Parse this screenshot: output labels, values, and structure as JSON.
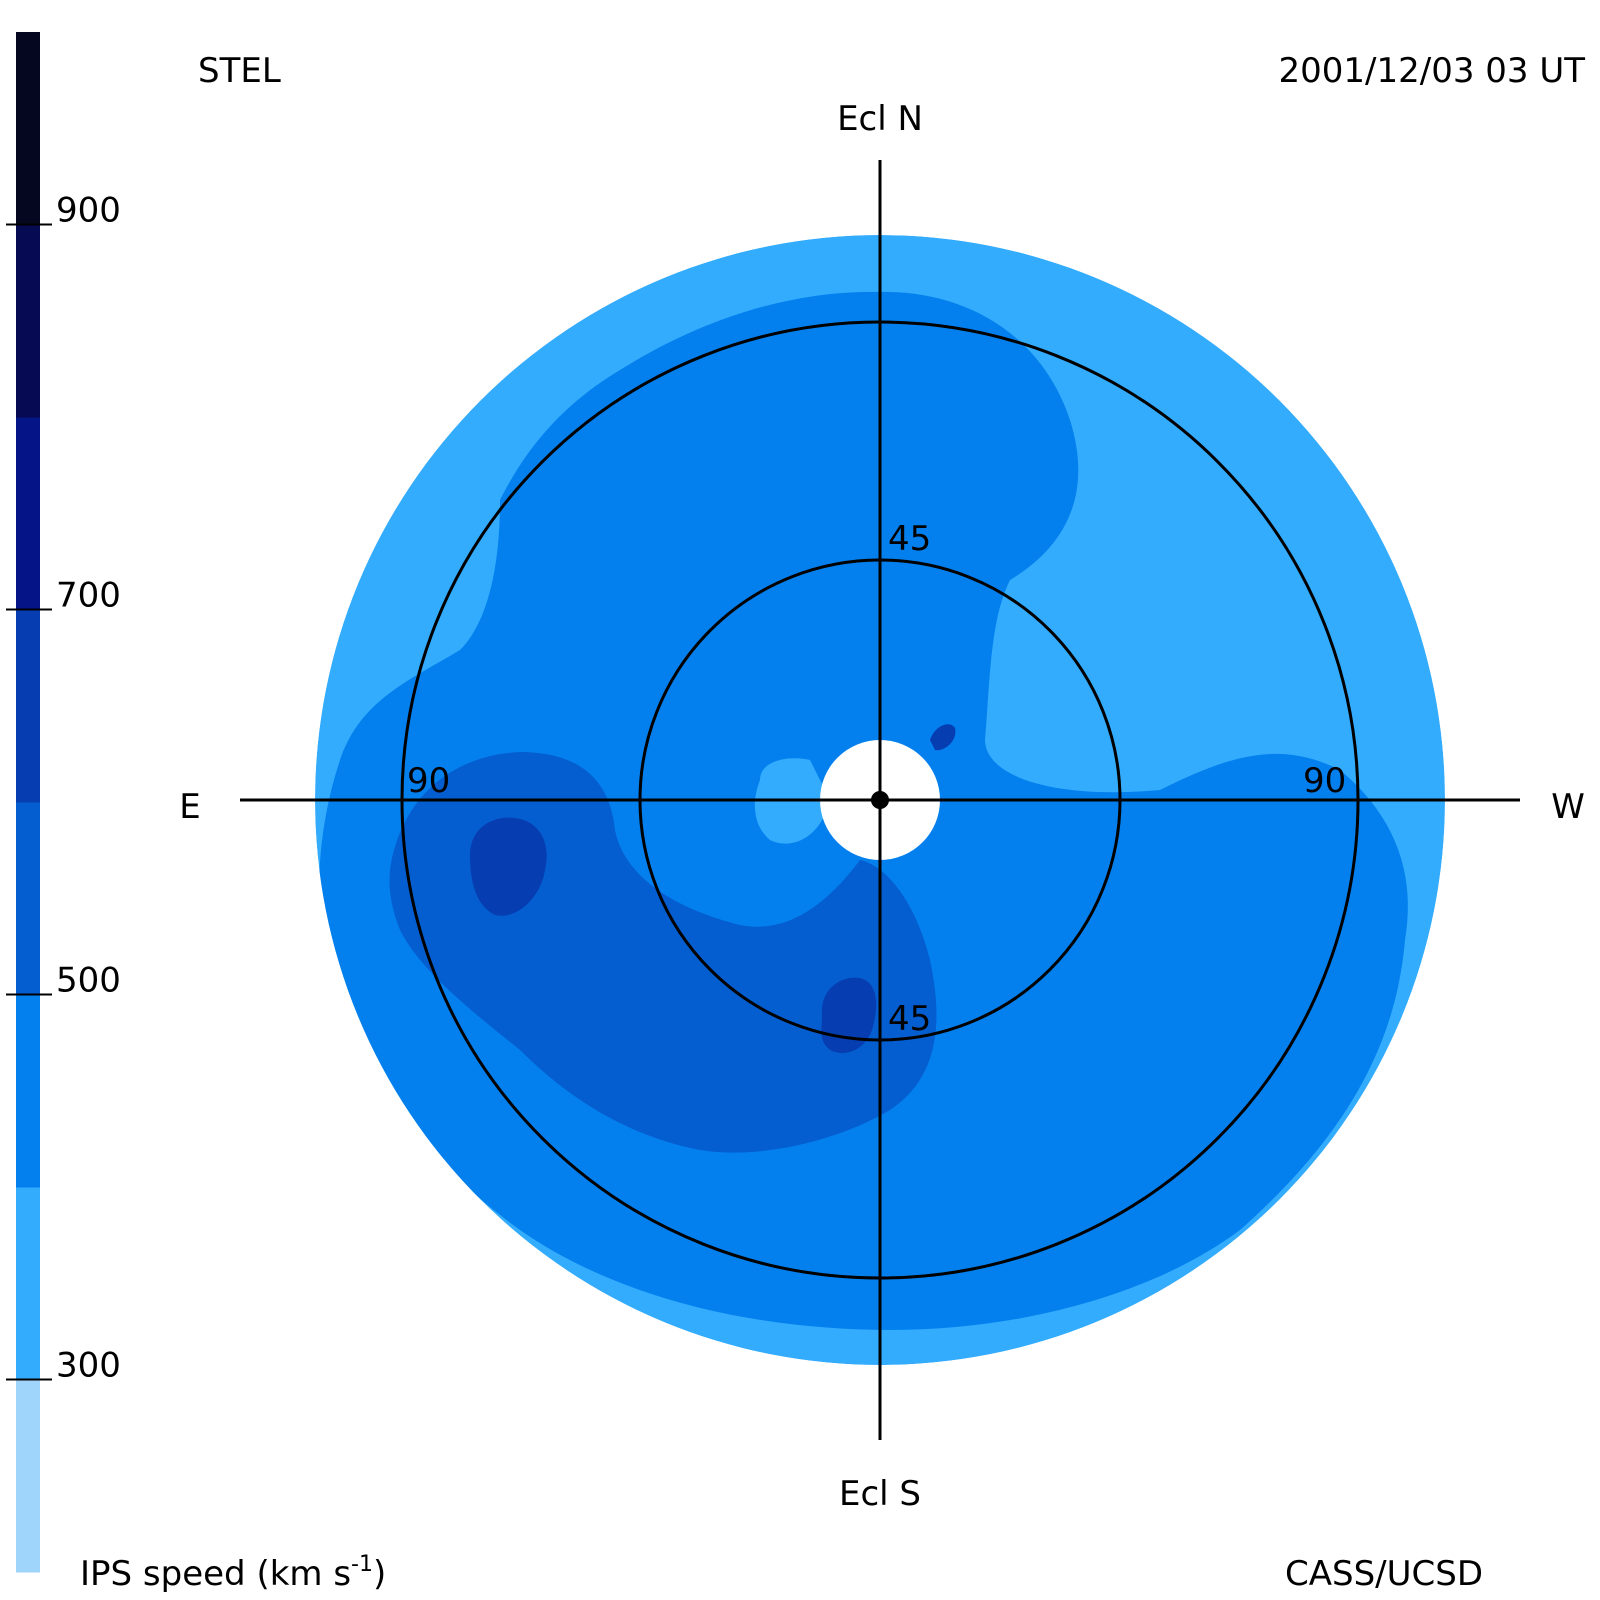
{
  "header": {
    "observatory": "STEL",
    "timestamp": "2001/12/03 03 UT",
    "credit": "CASS/UCSD"
  },
  "chart_data": {
    "type": "heatmap",
    "projection": "polar sky map (fisheye, elongation from Sun at center)",
    "colorbar": {
      "label_main": "IPS speed (km s",
      "label_superscript": "-1",
      "label_close": ")",
      "ticks": [
        {
          "label": "900",
          "value": 900
        },
        {
          "label": "700",
          "value": 700
        },
        {
          "label": "500",
          "value": 500
        },
        {
          "label": "300",
          "value": 300
        }
      ],
      "range": [
        200,
        1000
      ],
      "levels": [
        {
          "from": 200,
          "to": 300,
          "color": "#9fd5fb"
        },
        {
          "from": 300,
          "to": 400,
          "color": "#33acfd"
        },
        {
          "from": 400,
          "to": 500,
          "color": "#0480ee"
        },
        {
          "from": 500,
          "to": 600,
          "color": "#055ed0"
        },
        {
          "from": 600,
          "to": 700,
          "color": "#063db1"
        },
        {
          "from": 700,
          "to": 800,
          "color": "#051487"
        },
        {
          "from": 800,
          "to": 900,
          "color": "#050a52"
        },
        {
          "from": 900,
          "to": 1000,
          "color": "#050720"
        }
      ]
    },
    "directions": {
      "north": "Ecl N",
      "south": "Ecl S",
      "east": "E",
      "west": "W"
    },
    "elongation_rings": [
      {
        "value": 45,
        "label": "45"
      },
      {
        "value": 90,
        "label": "90"
      }
    ],
    "map_extent_elongation_deg": 109,
    "dominant_speeds_km_s": {
      "outer_rim": 350,
      "north_west_region": 350,
      "central_and_western_region": 450,
      "south_east_lobe": 550,
      "embedded_fast_spots": 650
    }
  },
  "colors": {
    "background": "#ffffff",
    "ink": "#000000"
  }
}
